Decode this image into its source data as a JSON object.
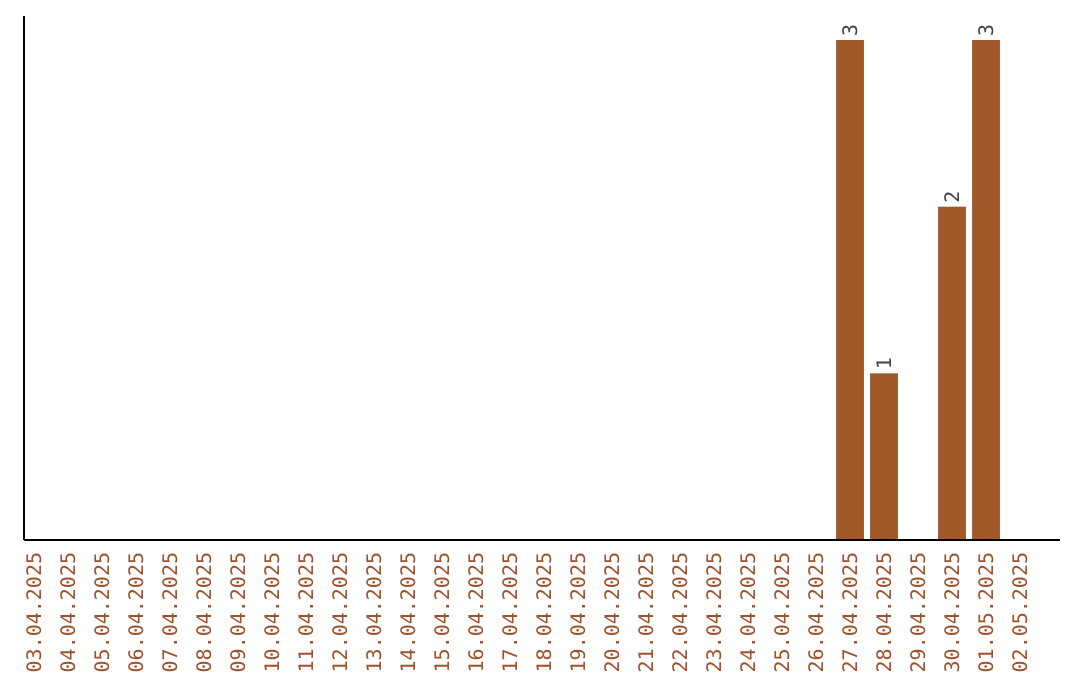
{
  "chart_data": {
    "type": "bar",
    "categories": [
      "03.04.2025",
      "04.04.2025",
      "05.04.2025",
      "06.04.2025",
      "07.04.2025",
      "08.04.2025",
      "09.04.2025",
      "10.04.2025",
      "11.04.2025",
      "12.04.2025",
      "13.04.2025",
      "14.04.2025",
      "15.04.2025",
      "16.04.2025",
      "17.04.2025",
      "18.04.2025",
      "19.04.2025",
      "20.04.2025",
      "21.04.2025",
      "22.04.2025",
      "23.04.2025",
      "24.04.2025",
      "25.04.2025",
      "26.04.2025",
      "27.04.2025",
      "28.04.2025",
      "29.04.2025",
      "30.04.2025",
      "01.05.2025",
      "02.05.2025"
    ],
    "values": [
      null,
      null,
      null,
      null,
      null,
      null,
      null,
      null,
      null,
      null,
      null,
      null,
      null,
      null,
      null,
      null,
      null,
      null,
      null,
      null,
      null,
      null,
      null,
      null,
      3,
      1,
      null,
      2,
      3,
      null
    ],
    "data_labels": true,
    "color": "#a0582a",
    "grid": false
  }
}
